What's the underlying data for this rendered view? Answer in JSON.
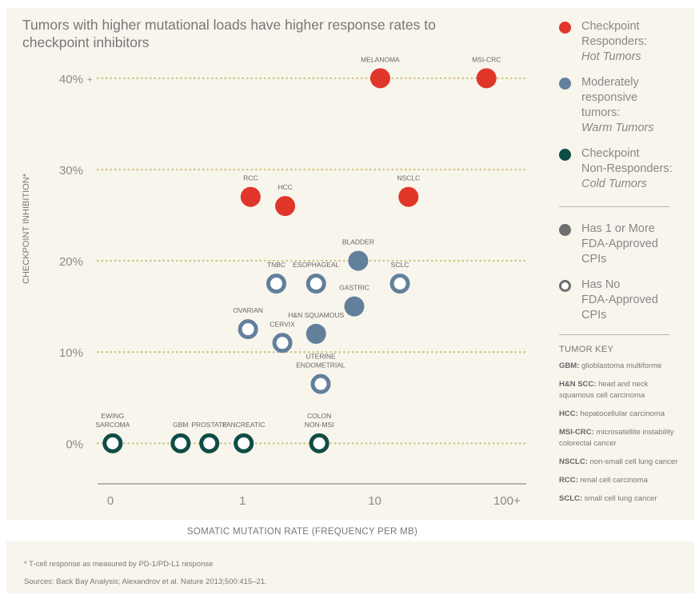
{
  "colors": {
    "hot": "#e0362a",
    "warm": "#62809c",
    "cold": "#0e4d46",
    "grid": "#cdbf78",
    "background": "#f8f5ed"
  },
  "chart_data": {
    "type": "scatter",
    "title": "Tumors with higher mutational loads have higher response rates to checkpoint inhibitors",
    "xlabel": "SOMATIC MUTATION RATE (FREQUENCY PER MB)",
    "ylabel": "CHECKPOINT INHIBITION*",
    "x_scale": "log",
    "x_ticks": [
      {
        "value": 0.1,
        "label": "0"
      },
      {
        "value": 1,
        "label": "1"
      },
      {
        "value": 10,
        "label": "10"
      },
      {
        "value": 100,
        "label": "100+"
      }
    ],
    "y_ticks": [
      {
        "value": 0,
        "label": "0%"
      },
      {
        "value": 10,
        "label": "10%"
      },
      {
        "value": 20,
        "label": "20%"
      },
      {
        "value": 30,
        "label": "30%"
      },
      {
        "value": 40,
        "label": "40%",
        "suffix": "+"
      }
    ],
    "xlim": [
      0.08,
      140
    ],
    "ylim": [
      -4,
      42
    ],
    "series": [
      {
        "name": "Checkpoint Responders: Hot Tumors",
        "color_key": "hot",
        "points": [
          {
            "label": "MELANOMA",
            "x": 11,
            "y": 40,
            "fda": true
          },
          {
            "label": "MSI-CRC",
            "x": 70,
            "y": 40,
            "fda": true
          },
          {
            "label": "RCC",
            "x": 1.15,
            "y": 27,
            "fda": true
          },
          {
            "label": "HCC",
            "x": 2.1,
            "y": 26,
            "fda": true
          },
          {
            "label": "NSCLC",
            "x": 18,
            "y": 27,
            "fda": true
          }
        ]
      },
      {
        "name": "Moderately responsive tumors: Warm Tumors",
        "color_key": "warm",
        "points": [
          {
            "label": "BLADDER",
            "x": 7.5,
            "y": 20,
            "fda": true
          },
          {
            "label": "TNBC",
            "x": 1.8,
            "y": 17.5,
            "fda": false
          },
          {
            "label": "ESOPHAGEAL",
            "x": 3.6,
            "y": 17.5,
            "fda": false
          },
          {
            "label": "SCLC",
            "x": 15.5,
            "y": 17.5,
            "fda": false
          },
          {
            "label": "GASTRIC",
            "x": 7,
            "y": 15,
            "fda": true
          },
          {
            "label": "OVARIAN",
            "x": 1.1,
            "y": 12.5,
            "fda": false
          },
          {
            "label": "CERVIX",
            "x": 2,
            "y": 11,
            "fda": false
          },
          {
            "label": "H&N SQUAMOUS",
            "x": 3.6,
            "y": 12,
            "fda": true
          },
          {
            "label": "UTERINE ENDOMETRIAL",
            "x": 3.9,
            "y": 6.5,
            "fda": false
          }
        ]
      },
      {
        "name": "Checkpoint Non-Responders: Cold Tumors",
        "color_key": "cold",
        "points": [
          {
            "label": "EWING SARCOMA",
            "x": 0.104,
            "y": 0,
            "fda": false
          },
          {
            "label": "GBM",
            "x": 0.34,
            "y": 0,
            "fda": false
          },
          {
            "label": "PROSTATE",
            "x": 0.56,
            "y": 0,
            "fda": false
          },
          {
            "label": "PANCREATIC",
            "x": 1.02,
            "y": 0,
            "fda": false
          },
          {
            "label": "COLON NON-MSI",
            "x": 3.8,
            "y": 0,
            "fda": false
          }
        ]
      }
    ]
  },
  "legend": {
    "hot": {
      "line1": "Checkpoint",
      "line2": "Responders:",
      "em": "Hot Tumors"
    },
    "warm": {
      "line1": "Moderately",
      "line2": "responsive",
      "line3": "tumors:",
      "em": "Warm Tumors"
    },
    "cold": {
      "line1": "Checkpoint",
      "line2": "Non-Responders:",
      "em": "Cold Tumors"
    },
    "filled": {
      "line1": "Has 1 or More",
      "line2": "FDA-Approved CPIs"
    },
    "hollow": {
      "line1": "Has No",
      "line2": "FDA-Approved CPIs"
    }
  },
  "tumor_key": {
    "title": "TUMOR KEY",
    "items": [
      {
        "abbr": "GBM:",
        "text": "glioblastoma multiforme"
      },
      {
        "abbr": "H&N SCC:",
        "text": "head and neck squamous cell carcinoma"
      },
      {
        "abbr": "HCC:",
        "text": "hepatocellular carcinoma"
      },
      {
        "abbr": "MSI-CRC:",
        "text": "microsatellite instability colorectal cancer"
      },
      {
        "abbr": "NSCLC:",
        "text": "non-small cell lung cancer"
      },
      {
        "abbr": "RCC:",
        "text": "renal cell carcinoma"
      },
      {
        "abbr": "SCLC:",
        "text": "small cell lung cancer"
      }
    ]
  },
  "footnote": "* T-cell response as measured by PD-1/PD-L1 response",
  "sources": "Sources: Back Bay Analysis; Alexandrov et al. Nature 2013;500:415–21."
}
